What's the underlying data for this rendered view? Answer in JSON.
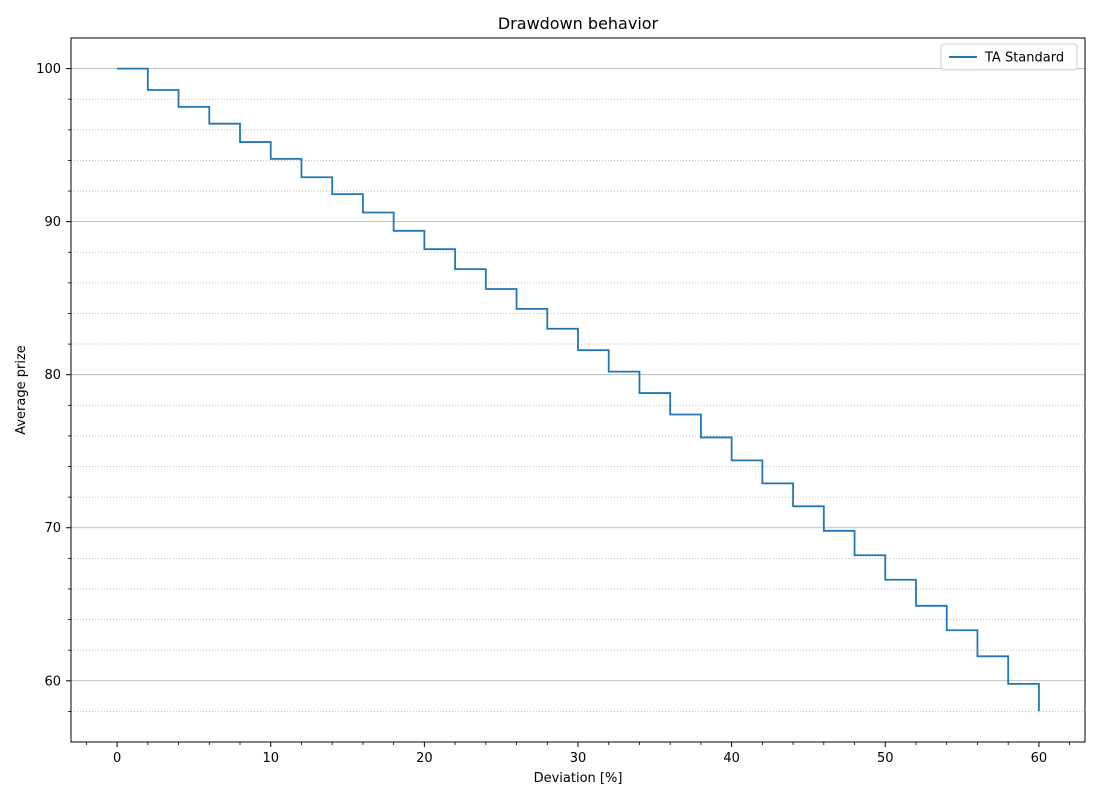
{
  "chart_data": {
    "type": "line",
    "title": "Drawdown behavior",
    "xlabel": "Deviation [%]",
    "ylabel": "Average prize",
    "xlim": [
      -3,
      63
    ],
    "ylim": [
      56,
      102
    ],
    "x_ticks": [
      0,
      10,
      20,
      30,
      40,
      50,
      60
    ],
    "x_tick_labels": [
      "0",
      "10",
      "20",
      "30",
      "40",
      "50",
      "60"
    ],
    "x_minor_ticks": [
      -2,
      2,
      4,
      6,
      8,
      12,
      14,
      16,
      18,
      22,
      24,
      26,
      28,
      32,
      34,
      36,
      38,
      42,
      44,
      46,
      48,
      52,
      54,
      56,
      58,
      62
    ],
    "y_ticks": [
      60,
      70,
      80,
      90,
      100
    ],
    "y_tick_labels": [
      "60",
      "70",
      "80",
      "90",
      "100"
    ],
    "y_minor_ticks": [
      58,
      62,
      64,
      66,
      68,
      72,
      74,
      76,
      78,
      82,
      84,
      86,
      88,
      92,
      94,
      96,
      98
    ],
    "grid": {
      "major_y": true,
      "minor_y": true,
      "x": false
    },
    "legend": {
      "placement": "top-right"
    },
    "step": "post",
    "series": [
      {
        "name": "TA Standard",
        "color": "#1f77b4",
        "x": [
          0,
          2,
          4,
          6,
          8,
          10,
          12,
          14,
          16,
          18,
          20,
          22,
          24,
          26,
          28,
          30,
          32,
          34,
          36,
          38,
          40,
          42,
          44,
          46,
          48,
          50,
          52,
          54,
          56,
          58,
          60
        ],
        "y": [
          100,
          98.6,
          97.5,
          96.4,
          95.2,
          94.1,
          92.9,
          91.8,
          90.6,
          89.4,
          88.2,
          86.9,
          85.6,
          84.3,
          83.0,
          81.6,
          80.2,
          78.8,
          77.4,
          75.9,
          74.4,
          72.9,
          71.4,
          69.8,
          68.2,
          66.6,
          64.9,
          63.3,
          61.6,
          59.8,
          58.0
        ]
      }
    ]
  }
}
